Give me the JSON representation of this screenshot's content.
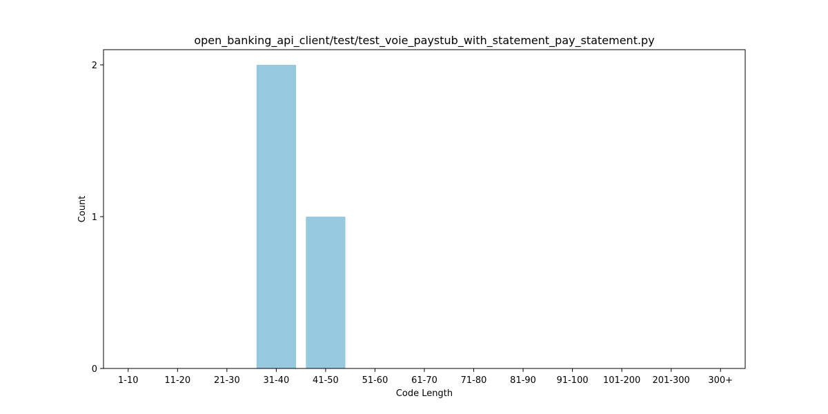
{
  "chart_data": {
    "type": "bar",
    "title": "open_banking_api_client/test/test_voie_paystub_with_statement_pay_statement.py",
    "xlabel": "Code Length",
    "ylabel": "Count",
    "categories": [
      "1-10",
      "11-20",
      "21-30",
      "31-40",
      "41-50",
      "51-60",
      "61-70",
      "71-80",
      "81-90",
      "91-100",
      "101-200",
      "201-300",
      "300+"
    ],
    "values": [
      0,
      0,
      0,
      2,
      1,
      0,
      0,
      0,
      0,
      0,
      0,
      0,
      0
    ],
    "ylim": [
      0,
      2.1
    ],
    "yticks": [
      0,
      1,
      2
    ],
    "bar_color": "#96c9de",
    "grid": false,
    "legend": "none"
  }
}
